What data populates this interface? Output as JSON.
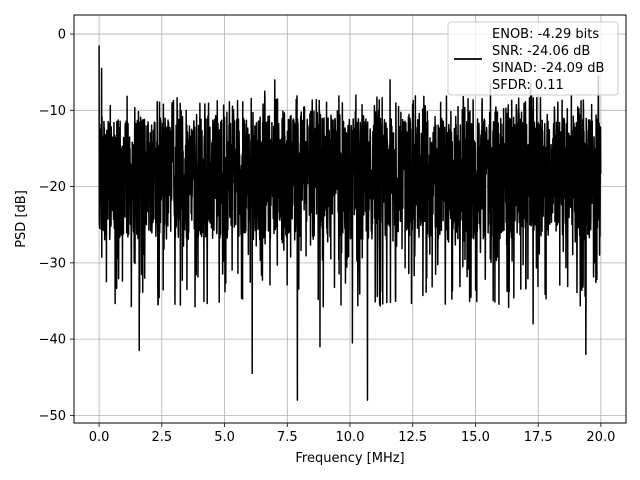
{
  "chart_data": {
    "type": "line",
    "xlabel": "Frequency [MHz]",
    "ylabel": "PSD [dB]",
    "xlim": [
      -1.0,
      21.0
    ],
    "ylim": [
      -51.0,
      2.5
    ],
    "xticks": [
      0.0,
      2.5,
      5.0,
      7.5,
      10.0,
      12.5,
      15.0,
      17.5,
      20.0
    ],
    "xtick_labels": [
      "0.0",
      "2.5",
      "5.0",
      "7.5",
      "10.0",
      "12.5",
      "15.0",
      "17.5",
      "20.0"
    ],
    "yticks": [
      0,
      -10,
      -20,
      -30,
      -40,
      -50
    ],
    "ytick_labels": [
      "0",
      "−10",
      "−20",
      "−30",
      "−40",
      "−50"
    ],
    "grid": true,
    "legend_position": "top-right",
    "legend_lines": [
      "ENOB: -4.29 bits",
      "SNR: -24.06 dB",
      "SINAD: -24.09 dB",
      "SFDR: 0.11"
    ],
    "series_color": "#000000",
    "series": [
      {
        "x_range": [
          0.0,
          20.0
        ],
        "y_center": -18.0,
        "y_band_low": -27.0,
        "y_band_high": -11.0,
        "y_peak_max": -1.5,
        "y_dip_min": -48.0,
        "peaks": [
          {
            "x": 0.0,
            "y": -1.5
          },
          {
            "x": 0.1,
            "y": -4.5
          },
          {
            "x": 6.6,
            "y": -7.5
          },
          {
            "x": 7.0,
            "y": -6.0
          },
          {
            "x": 11.6,
            "y": -6.0
          },
          {
            "x": 15.6,
            "y": -6.5
          },
          {
            "x": 17.2,
            "y": -6.5
          },
          {
            "x": 19.9,
            "y": -5.5
          }
        ],
        "dips": [
          {
            "x": 1.6,
            "y": -41.5
          },
          {
            "x": 6.1,
            "y": -44.5
          },
          {
            "x": 7.9,
            "y": -48.0
          },
          {
            "x": 8.8,
            "y": -41.0
          },
          {
            "x": 10.1,
            "y": -40.5
          },
          {
            "x": 10.7,
            "y": -48.0
          },
          {
            "x": 17.3,
            "y": -38.0
          },
          {
            "x": 19.4,
            "y": -42.0
          }
        ]
      }
    ]
  }
}
